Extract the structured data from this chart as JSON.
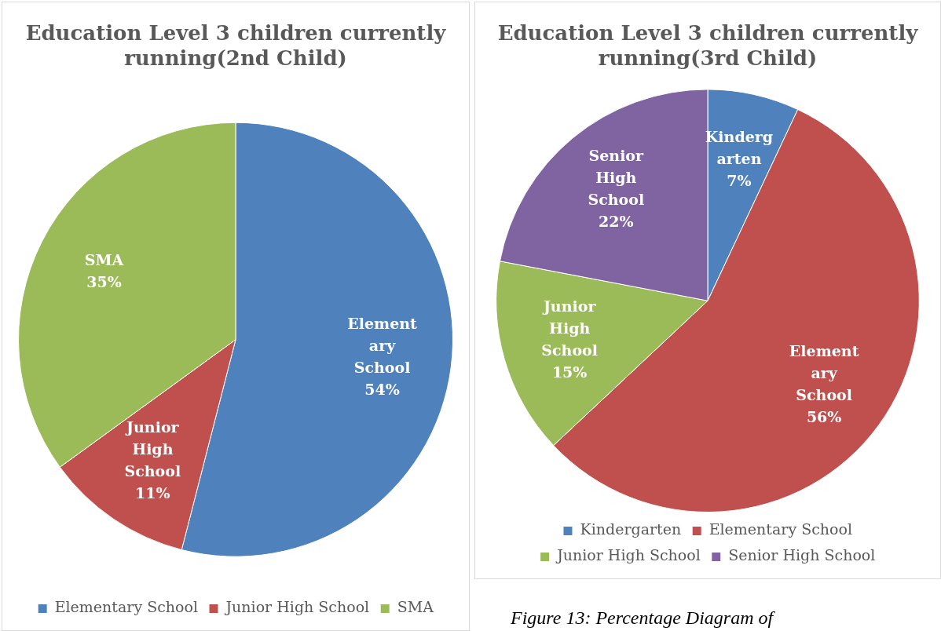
{
  "chart_data": [
    {
      "type": "pie",
      "title": "Education Level 3 children currently running(2nd Child)",
      "categories": [
        "Elementary School",
        "Junior High School",
        "SMA"
      ],
      "values": [
        54,
        11,
        35
      ],
      "value_labels": [
        "54%",
        "11%",
        "35%"
      ],
      "colors": [
        "#4f81bd",
        "#c0504d",
        "#9bbb59"
      ],
      "data_labels": true,
      "legend": "bottom"
    },
    {
      "type": "pie",
      "title": "Education Level 3 children currently running(3rd Child)",
      "categories": [
        "Kindergarten",
        "Elementary School",
        "Junior High School",
        "Senior High School"
      ],
      "values": [
        7,
        56,
        15,
        22
      ],
      "value_labels": [
        "7%",
        "56%",
        "15%",
        "22%"
      ],
      "colors": [
        "#4f81bd",
        "#c0504d",
        "#9bbb59",
        "#8064a2"
      ],
      "data_labels": true,
      "legend": "bottom",
      "annotations": [
        "Figure 13: Percentage Diagram of"
      ]
    }
  ]
}
